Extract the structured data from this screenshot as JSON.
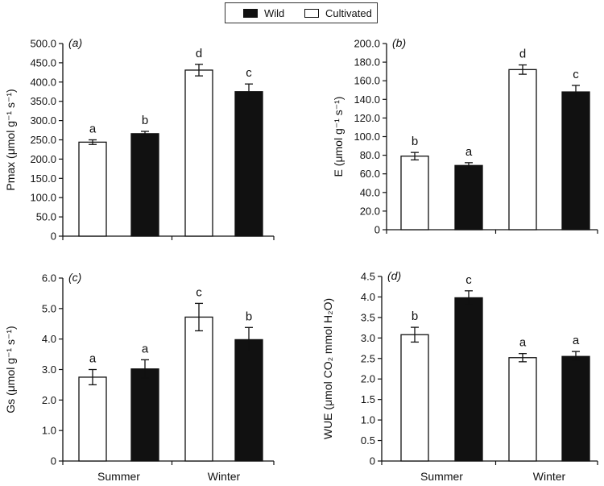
{
  "legend": {
    "items": [
      {
        "label": "Wild",
        "color": "#111111"
      },
      {
        "label": "Cultivated",
        "color": "#ffffff"
      }
    ]
  },
  "chart_data": [
    {
      "type": "bar",
      "panel_label": "(a)",
      "ylabel": "Pmax (μmol g⁻¹ s⁻¹)",
      "categories": [
        "Summer",
        "Winter"
      ],
      "ylim": [
        0,
        500
      ],
      "yticks": [
        "0",
        "50.0",
        "100.0",
        "150.0",
        "200.0",
        "250.0",
        "300.0",
        "350.0",
        "400.0",
        "450.0",
        "500.0"
      ],
      "show_xlabels": false,
      "series": [
        {
          "name": "Cultivated",
          "values": [
            244,
            431
          ],
          "errors": [
            6,
            15
          ],
          "letters": [
            "a",
            "d"
          ]
        },
        {
          "name": "Wild",
          "values": [
            266,
            375
          ],
          "errors": [
            6,
            20
          ],
          "letters": [
            "b",
            "c"
          ]
        }
      ]
    },
    {
      "type": "bar",
      "panel_label": "(b)",
      "ylabel": "E (μmol g⁻¹ s⁻¹)",
      "categories": [
        "Summer",
        "Winter"
      ],
      "ylim": [
        0,
        200
      ],
      "yticks": [
        "0",
        "20.0",
        "40.0",
        "60.0",
        "80.0",
        "100.0",
        "120.0",
        "140.0",
        "160.0",
        "180.0",
        "200.0"
      ],
      "show_xlabels": false,
      "series": [
        {
          "name": "Cultivated",
          "values": [
            79,
            172
          ],
          "errors": [
            4,
            5
          ],
          "letters": [
            "b",
            "d"
          ]
        },
        {
          "name": "Wild",
          "values": [
            69,
            148
          ],
          "errors": [
            3,
            7
          ],
          "letters": [
            "a",
            "c"
          ]
        }
      ]
    },
    {
      "type": "bar",
      "panel_label": "(c)",
      "ylabel": "Gs (μmol g⁻¹ s⁻¹)",
      "categories": [
        "Summer",
        "Winter"
      ],
      "ylim": [
        0,
        6
      ],
      "yticks": [
        "0",
        "1.0",
        "2.0",
        "3.0",
        "4.0",
        "5.0",
        "6.0"
      ],
      "show_xlabels": true,
      "series": [
        {
          "name": "Cultivated",
          "values": [
            2.75,
            4.72
          ],
          "errors": [
            0.25,
            0.45
          ],
          "letters": [
            "a",
            "c"
          ]
        },
        {
          "name": "Wild",
          "values": [
            3.02,
            3.98
          ],
          "errors": [
            0.3,
            0.4
          ],
          "letters": [
            "a",
            "b"
          ]
        }
      ]
    },
    {
      "type": "bar",
      "panel_label": "(d)",
      "ylabel": "WUE (μmol CO₂ mmol H₂O)",
      "categories": [
        "Summer",
        "Winter"
      ],
      "ylim": [
        0,
        4.5
      ],
      "yticks": [
        "0",
        "0.5",
        "1.0",
        "1.5",
        "2.0",
        "2.5",
        "3.0",
        "3.5",
        "4.0",
        "4.5"
      ],
      "show_xlabels": true,
      "series": [
        {
          "name": "Cultivated",
          "values": [
            3.08,
            2.52
          ],
          "errors": [
            0.18,
            0.1
          ],
          "letters": [
            "b",
            "a"
          ]
        },
        {
          "name": "Wild",
          "values": [
            3.98,
            2.55
          ],
          "errors": [
            0.17,
            0.12
          ],
          "letters": [
            "c",
            "a"
          ]
        }
      ]
    }
  ]
}
